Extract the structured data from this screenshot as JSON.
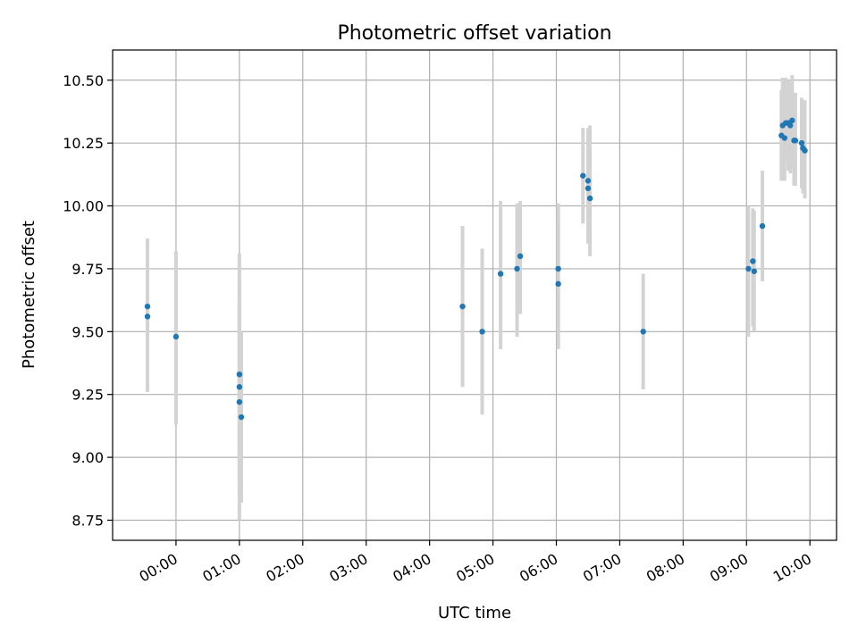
{
  "chart_data": {
    "type": "scatter",
    "title": "Photometric offset variation",
    "xlabel": "UTC time",
    "ylabel": "Photometric offset",
    "x_unit": "hours UTC",
    "xlim": [
      -1.0,
      10.42
    ],
    "ylim": [
      8.67,
      10.62
    ],
    "grid": true,
    "x_ticks": [
      {
        "value": 0,
        "label": "00:00"
      },
      {
        "value": 1,
        "label": "01:00"
      },
      {
        "value": 2,
        "label": "02:00"
      },
      {
        "value": 3,
        "label": "03:00"
      },
      {
        "value": 4,
        "label": "04:00"
      },
      {
        "value": 5,
        "label": "05:00"
      },
      {
        "value": 6,
        "label": "06:00"
      },
      {
        "value": 7,
        "label": "07:00"
      },
      {
        "value": 8,
        "label": "08:00"
      },
      {
        "value": 9,
        "label": "09:00"
      },
      {
        "value": 10,
        "label": "10:00"
      }
    ],
    "y_ticks": [
      {
        "value": 8.75,
        "label": "8.75"
      },
      {
        "value": 9.0,
        "label": "9.00"
      },
      {
        "value": 9.25,
        "label": "9.25"
      },
      {
        "value": 9.5,
        "label": "9.50"
      },
      {
        "value": 9.75,
        "label": "9.75"
      },
      {
        "value": 10.0,
        "label": "10.00"
      },
      {
        "value": 10.25,
        "label": "10.25"
      },
      {
        "value": 10.5,
        "label": "10.50"
      }
    ],
    "point_color": "#1f77b4",
    "errorbar_color": "#d3d3d3",
    "points": [
      {
        "x": -0.45,
        "y": 9.6,
        "lo": 9.4,
        "hi": 9.87
      },
      {
        "x": -0.45,
        "y": 9.56,
        "lo": 9.26,
        "hi": 9.82
      },
      {
        "x": 0.0,
        "y": 9.48,
        "lo": 9.13,
        "hi": 9.82
      },
      {
        "x": 1.0,
        "y": 9.33,
        "lo": 9.0,
        "hi": 9.81
      },
      {
        "x": 1.0,
        "y": 9.28,
        "lo": 8.9,
        "hi": 9.7
      },
      {
        "x": 1.0,
        "y": 9.22,
        "lo": 8.75,
        "hi": 9.61
      },
      {
        "x": 1.03,
        "y": 9.16,
        "lo": 8.82,
        "hi": 9.5
      },
      {
        "x": 4.52,
        "y": 9.6,
        "lo": 9.28,
        "hi": 9.92
      },
      {
        "x": 4.83,
        "y": 9.5,
        "lo": 9.17,
        "hi": 9.83
      },
      {
        "x": 5.12,
        "y": 9.73,
        "lo": 9.43,
        "hi": 10.02
      },
      {
        "x": 5.38,
        "y": 9.75,
        "lo": 9.48,
        "hi": 10.01
      },
      {
        "x": 5.43,
        "y": 9.8,
        "lo": 9.57,
        "hi": 10.02
      },
      {
        "x": 6.03,
        "y": 9.75,
        "lo": 9.5,
        "hi": 10.01
      },
      {
        "x": 6.03,
        "y": 9.69,
        "lo": 9.43,
        "hi": 9.95
      },
      {
        "x": 6.42,
        "y": 10.12,
        "lo": 9.93,
        "hi": 10.31
      },
      {
        "x": 6.5,
        "y": 10.1,
        "lo": 9.88,
        "hi": 10.31
      },
      {
        "x": 6.5,
        "y": 10.07,
        "lo": 9.85,
        "hi": 10.3
      },
      {
        "x": 6.53,
        "y": 10.03,
        "lo": 9.8,
        "hi": 10.32
      },
      {
        "x": 7.37,
        "y": 9.5,
        "lo": 9.27,
        "hi": 9.73
      },
      {
        "x": 9.03,
        "y": 9.75,
        "lo": 9.48,
        "hi": 10.0
      },
      {
        "x": 9.1,
        "y": 9.78,
        "lo": 9.52,
        "hi": 9.99
      },
      {
        "x": 9.12,
        "y": 9.74,
        "lo": 9.5,
        "hi": 9.98
      },
      {
        "x": 9.25,
        "y": 9.92,
        "lo": 9.7,
        "hi": 10.14
      },
      {
        "x": 9.55,
        "y": 10.28,
        "lo": 10.1,
        "hi": 10.46
      },
      {
        "x": 9.57,
        "y": 10.32,
        "lo": 10.1,
        "hi": 10.51
      },
      {
        "x": 9.6,
        "y": 10.27,
        "lo": 10.1,
        "hi": 10.48
      },
      {
        "x": 9.62,
        "y": 10.33,
        "lo": 10.17,
        "hi": 10.51
      },
      {
        "x": 9.66,
        "y": 10.33,
        "lo": 10.14,
        "hi": 10.5
      },
      {
        "x": 9.69,
        "y": 10.32,
        "lo": 10.13,
        "hi": 10.49
      },
      {
        "x": 9.72,
        "y": 10.34,
        "lo": 10.15,
        "hi": 10.52
      },
      {
        "x": 9.75,
        "y": 10.26,
        "lo": 10.08,
        "hi": 10.44
      },
      {
        "x": 9.77,
        "y": 10.26,
        "lo": 10.08,
        "hi": 10.45
      },
      {
        "x": 9.87,
        "y": 10.25,
        "lo": 10.07,
        "hi": 10.43
      },
      {
        "x": 9.89,
        "y": 10.23,
        "lo": 10.05,
        "hi": 10.42
      },
      {
        "x": 9.92,
        "y": 10.22,
        "lo": 10.03,
        "hi": 10.42
      }
    ]
  }
}
